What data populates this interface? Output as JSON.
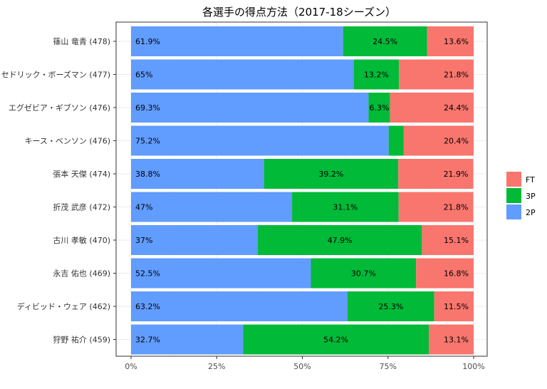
{
  "chart_data": {
    "type": "bar",
    "orientation": "horizontal",
    "stacked": true,
    "title": "各選手の得点方法（2017-18シーズン）",
    "xlabel": "",
    "ylabel": "",
    "xlim": [
      0,
      100
    ],
    "x_ticks": [
      "0%",
      "25%",
      "50%",
      "75%",
      "100%"
    ],
    "grid": true,
    "legend_position": "right",
    "categories": [
      "篠山 竜青 (478)",
      "セドリック・ボーズマン (477)",
      "エグゼビア・ギブソン (476)",
      "キース・ベンソン (476)",
      "張本 天傑 (474)",
      "折茂 武彦 (472)",
      "古川 孝敏 (470)",
      "永吉 佑也 (469)",
      "ディビッド・ウェア (462)",
      "狩野 祐介 (459)"
    ],
    "series": [
      {
        "name": "2P",
        "color": "#619CFF",
        "values": [
          61.9,
          65,
          69.3,
          75.2,
          38.8,
          47,
          37,
          52.5,
          63.2,
          32.7
        ],
        "labels": [
          "61.9%",
          "65%",
          "69.3%",
          "75.2%",
          "38.8%",
          "47%",
          "37%",
          "52.5%",
          "63.2%",
          "32.7%"
        ]
      },
      {
        "name": "3P",
        "color": "#00BA38",
        "values": [
          24.5,
          13.2,
          6.3,
          4.4,
          39.2,
          31.1,
          47.9,
          30.7,
          25.3,
          54.2
        ],
        "labels": [
          "24.5%",
          "13.2%",
          "6.3%",
          "",
          "39.2%",
          "31.1%",
          "47.9%",
          "30.7%",
          "25.3%",
          "54.2%"
        ]
      },
      {
        "name": "FT",
        "color": "#F8766D",
        "values": [
          13.6,
          21.8,
          24.4,
          20.4,
          21.9,
          21.8,
          15.1,
          16.8,
          11.5,
          13.1
        ],
        "labels": [
          "13.6%",
          "21.8%",
          "24.4%",
          "20.4%",
          "21.9%",
          "21.8%",
          "15.1%",
          "16.8%",
          "11.5%",
          "13.1%"
        ]
      }
    ],
    "legend_order": [
      "FT",
      "3P",
      "2P"
    ]
  }
}
